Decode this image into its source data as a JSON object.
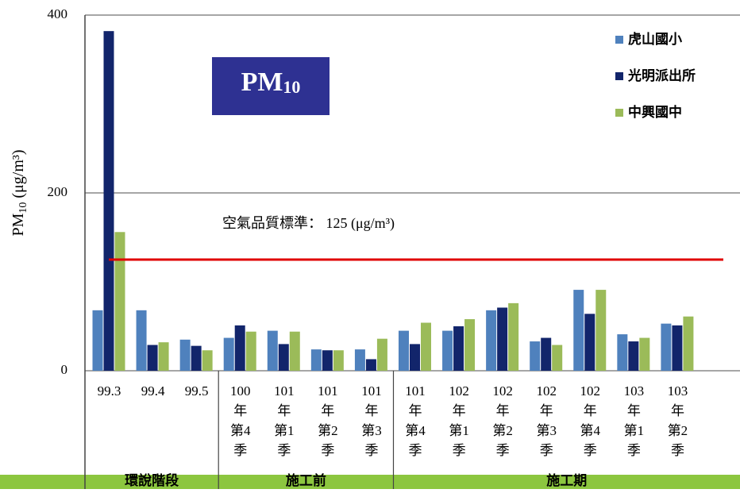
{
  "chart_data": {
    "type": "bar",
    "title": "PM10",
    "y_label": "PM10 (μg/m³)",
    "categories": [
      "99.3",
      "99.4",
      "99.5",
      "100年第4季",
      "101年第1季",
      "101年第2季",
      "101年第3季",
      "101年第4季",
      "102年第1季",
      "102年第2季",
      "102年第3季",
      "102年第4季",
      "103年第1季",
      "103年第2季"
    ],
    "groups": [
      "環說階段",
      "施工前",
      "施工期"
    ],
    "series": [
      {
        "name": "虎山國小",
        "color": "#4f81bd",
        "values": [
          68,
          68,
          35,
          37,
          45,
          24,
          24,
          45,
          45,
          68,
          33,
          91,
          41,
          53
        ]
      },
      {
        "name": "光明派出所",
        "color": "#12256b",
        "values": [
          382,
          29,
          28,
          51,
          30,
          23,
          13,
          30,
          50,
          71,
          37,
          64,
          33,
          51
        ]
      },
      {
        "name": "中興國中",
        "color": "#9bbb59",
        "values": [
          156,
          32,
          23,
          44,
          44,
          23,
          36,
          54,
          58,
          76,
          29,
          91,
          37,
          61
        ]
      }
    ],
    "standard": {
      "value": 125,
      "label": "空氣品質標準： 125 (μg/m³)",
      "color": "#e00000"
    },
    "ylim": [
      0,
      400
    ],
    "yticks": [
      0,
      200,
      400
    ],
    "grid": true,
    "legend": "top-right"
  }
}
